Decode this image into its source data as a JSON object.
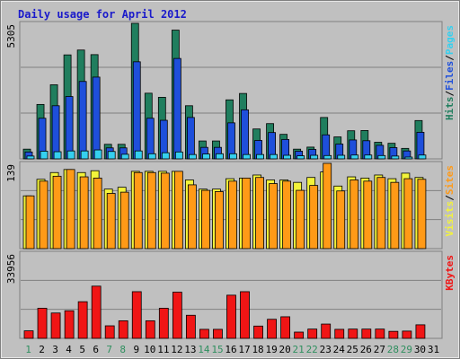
{
  "chart_data": [
    {
      "type": "bar",
      "title": "Daily usage for April 2012",
      "ymax_label": "5305",
      "ylim": [
        0,
        5305
      ],
      "categories": [
        "1",
        "2",
        "3",
        "4",
        "5",
        "6",
        "7",
        "8",
        "9",
        "10",
        "11",
        "12",
        "13",
        "14",
        "15",
        "16",
        "17",
        "18",
        "19",
        "20",
        "21",
        "22",
        "23",
        "24",
        "25",
        "26",
        "27",
        "28",
        "29",
        "30",
        "31"
      ],
      "series": [
        {
          "name": "Hits",
          "color": "#207e5e",
          "values": [
            380,
            2130,
            2900,
            4070,
            4260,
            4080,
            570,
            570,
            5305,
            2570,
            2410,
            5040,
            2080,
            700,
            700,
            2310,
            2560,
            1170,
            1380,
            960,
            380,
            460,
            1620,
            860,
            1100,
            1110,
            650,
            610,
            410,
            1500,
            0
          ]
        },
        {
          "name": "Files",
          "color": "#1e4fdb",
          "values": [
            270,
            1590,
            2080,
            2440,
            3030,
            3200,
            430,
            430,
            3800,
            1590,
            1510,
            3930,
            1620,
            450,
            450,
            1410,
            1920,
            720,
            1030,
            760,
            300,
            370,
            940,
            580,
            740,
            710,
            530,
            440,
            310,
            1040,
            0
          ]
        },
        {
          "name": "Pages",
          "color": "#35d0ef",
          "values": [
            110,
            300,
            280,
            310,
            310,
            350,
            290,
            180,
            310,
            200,
            240,
            270,
            170,
            190,
            200,
            200,
            170,
            170,
            170,
            140,
            120,
            140,
            130,
            140,
            150,
            150,
            130,
            110,
            70,
            150,
            0
          ]
        }
      ],
      "side_labels": [
        "Pages",
        "/",
        "Files",
        "/",
        "Hits"
      ]
    },
    {
      "type": "bar",
      "ymax_label": "139",
      "ylim": [
        0,
        139
      ],
      "categories": [
        "1",
        "2",
        "3",
        "4",
        "5",
        "6",
        "7",
        "8",
        "9",
        "10",
        "11",
        "12",
        "13",
        "14",
        "15",
        "16",
        "17",
        "18",
        "19",
        "20",
        "21",
        "22",
        "23",
        "24",
        "25",
        "26",
        "27",
        "28",
        "29",
        "30",
        "31"
      ],
      "series": [
        {
          "name": "Visits",
          "color": "#f3f33a",
          "values": [
            86,
            113,
            124,
            129,
            124,
            127,
            97,
            100,
            126,
            126,
            126,
            126,
            112,
            97,
            97,
            114,
            115,
            120,
            112,
            112,
            108,
            116,
            125,
            102,
            117,
            115,
            120,
            114,
            123,
            116,
            0
          ]
        },
        {
          "name": "Sites",
          "color": "#ff9a17",
          "values": [
            86,
            110,
            118,
            129,
            117,
            115,
            90,
            92,
            124,
            124,
            123,
            126,
            104,
            95,
            93,
            110,
            115,
            116,
            106,
            110,
            95,
            103,
            139,
            94,
            112,
            110,
            116,
            108,
            114,
            113,
            0
          ]
        }
      ],
      "side_labels": [
        "Sites",
        "/",
        "Visits"
      ]
    },
    {
      "type": "bar",
      "ymax_label": "33956",
      "ylim": [
        0,
        33956
      ],
      "categories": [
        "1",
        "2",
        "3",
        "4",
        "5",
        "6",
        "7",
        "8",
        "9",
        "10",
        "11",
        "12",
        "13",
        "14",
        "15",
        "16",
        "17",
        "18",
        "19",
        "20",
        "21",
        "22",
        "23",
        "24",
        "25",
        "26",
        "27",
        "28",
        "29",
        "30",
        "31"
      ],
      "series": [
        {
          "name": "KBytes",
          "color": "#f01515",
          "values": [
            3000,
            12000,
            10100,
            11000,
            14600,
            20800,
            5000,
            7000,
            18600,
            7000,
            12000,
            18400,
            9200,
            3600,
            3600,
            17200,
            18600,
            4900,
            7600,
            8600,
            2500,
            3700,
            5700,
            3600,
            3700,
            3700,
            3700,
            2800,
            2900,
            5400,
            0
          ]
        }
      ],
      "side_labels": [
        "KBytes"
      ]
    }
  ],
  "x_label_weekend_color": "#2f8f5f",
  "x_label_weekday_color": "#000000",
  "weekend_days": [
    1,
    7,
    8,
    14,
    15,
    21,
    22,
    28,
    29
  ],
  "colors": {
    "background": "#c0c0c0",
    "frame": "#808080",
    "gridline": "#808080",
    "title": "#1a1acb"
  }
}
